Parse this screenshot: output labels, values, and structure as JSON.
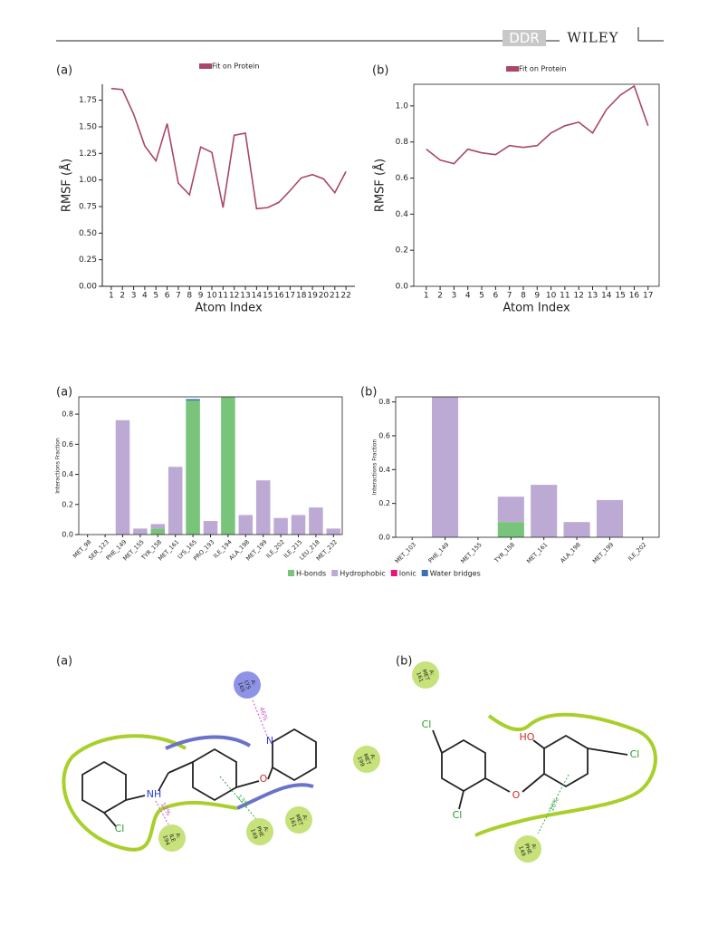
{
  "header": {
    "journal": "DDR",
    "publisher": "WILEY"
  },
  "chart_data": [
    {
      "type": "line",
      "panel": "(a)",
      "xlabel": "Atom Index",
      "ylabel": "RMSF (Å)",
      "x": [
        1,
        2,
        3,
        4,
        5,
        6,
        7,
        8,
        9,
        10,
        11,
        12,
        13,
        14,
        15,
        16,
        17,
        18,
        19,
        20,
        21,
        22
      ],
      "series": [
        {
          "name": "Fit on Protein",
          "color": "#a8466d",
          "values": [
            1.86,
            1.85,
            1.62,
            1.32,
            1.18,
            1.53,
            0.97,
            0.86,
            1.31,
            1.26,
            0.74,
            1.42,
            1.44,
            0.73,
            0.74,
            0.79,
            0.9,
            1.02,
            1.05,
            1.01,
            0.88,
            1.08
          ]
        }
      ],
      "xlim": [
        0.2,
        22.8
      ],
      "ylim": [
        0,
        1.9
      ],
      "xticks": [
        1,
        2,
        3,
        4,
        5,
        6,
        7,
        8,
        9,
        10,
        11,
        12,
        13,
        14,
        15,
        16,
        17,
        18,
        19,
        20,
        21,
        22
      ],
      "yticks": [
        {
          "value": 0,
          "label": "0.00"
        },
        0.25,
        {
          "value": 0.5,
          "label": "0.50"
        },
        0.75,
        {
          "value": 1,
          "label": "1.00"
        },
        1.25,
        {
          "value": 1.5,
          "label": "1.50"
        },
        1.75
      ]
    },
    {
      "type": "line",
      "panel": "(b)",
      "xlabel": "Atom Index",
      "ylabel": "RMSF (Å)",
      "x": [
        1,
        2,
        3,
        4,
        5,
        6,
        7,
        8,
        9,
        10,
        11,
        12,
        13,
        14,
        15,
        16,
        17
      ],
      "series": [
        {
          "name": "Fit on Protein",
          "color": "#a8466d",
          "values": [
            0.76,
            0.7,
            0.68,
            0.76,
            0.74,
            0.73,
            0.78,
            0.77,
            0.78,
            0.85,
            0.89,
            0.91,
            0.85,
            0.98,
            1.06,
            1.11,
            0.89
          ]
        }
      ],
      "xlim": [
        0.1,
        17.8
      ],
      "ylim": [
        0,
        1.12
      ],
      "xticks": [
        1,
        2,
        3,
        4,
        5,
        6,
        7,
        8,
        9,
        10,
        11,
        12,
        13,
        14,
        15,
        16,
        17
      ],
      "yticks": [
        {
          "value": 0,
          "label": "0.0"
        },
        0.2,
        0.4,
        0.6,
        0.8,
        {
          "value": 1,
          "label": "1.0"
        }
      ]
    },
    {
      "type": "stacked_bar",
      "panel": "(a)",
      "ylabel": "Interactions Fraction",
      "categories": [
        "MET_98",
        "SER_123",
        "PHE_149",
        "MET_155",
        "TYR_158",
        "MET_161",
        "LYS_165",
        "PRO_193",
        "ILE_194",
        "ALA_198",
        "MET_199",
        "ILE_202",
        "ILE_215",
        "LEU_218",
        "MET_232"
      ],
      "series": [
        {
          "name": "H-bonds",
          "color": "#77c47a",
          "values": [
            0,
            0,
            0,
            0,
            0.04,
            0,
            0.89,
            0,
            0.92,
            0,
            0,
            0,
            0,
            0,
            0
          ]
        },
        {
          "name": "Hydrophobic",
          "color": "#bcaad4",
          "values": [
            0,
            0,
            0.76,
            0.04,
            0.03,
            0.45,
            0,
            0.09,
            0,
            0.13,
            0.36,
            0.11,
            0.13,
            0.18,
            0.04
          ]
        },
        {
          "name": "Ionic",
          "color": "#e8147c",
          "values": [
            0,
            0,
            0,
            0,
            0,
            0,
            0,
            0,
            0,
            0,
            0,
            0,
            0,
            0,
            0
          ]
        },
        {
          "name": "Water bridges",
          "color": "#3a6fb6",
          "values": [
            0,
            0,
            0,
            0,
            0,
            0,
            0.01,
            0,
            0,
            0,
            0,
            0,
            0,
            0,
            0
          ]
        }
      ],
      "ylim": [
        0,
        0.915
      ],
      "yticks": [
        {
          "value": 0,
          "label": "0.0"
        },
        0.2,
        0.4,
        0.6,
        0.8
      ]
    },
    {
      "type": "stacked_bar",
      "panel": "(b)",
      "ylabel": "Interactions Fraction",
      "categories": [
        "MET_103",
        "PHE_149",
        "MET_155",
        "TYR_158",
        "MET_161",
        "ALA_198",
        "MET_199",
        "ILE_202"
      ],
      "series": [
        {
          "color": "#77c47a",
          "values": [
            0,
            0,
            0,
            0.09,
            0,
            0,
            0,
            0
          ]
        },
        {
          "color": "#bcaad4",
          "values": [
            0,
            0.83,
            0,
            0.15,
            0.31,
            0.09,
            0.22,
            0
          ]
        },
        {
          "color": "#e8147c",
          "values": [
            0,
            0,
            0,
            0,
            0,
            0,
            0,
            0
          ]
        },
        {
          "color": "#3a6fb6",
          "values": [
            0,
            0,
            0,
            0,
            0,
            0,
            0,
            0
          ]
        }
      ],
      "ylim": [
        0,
        0.83
      ],
      "yticks": [
        {
          "value": 0,
          "label": "0.0"
        },
        0.2,
        0.4,
        0.6,
        0.8
      ]
    }
  ],
  "diagrams": [
    {
      "panel": "(a)",
      "residues": [
        [
          "A:",
          "LYS",
          "165"
        ],
        [
          "A:",
          "MET",
          "199"
        ],
        [
          "A:",
          "ILE",
          "194"
        ],
        [
          "A:",
          "PHE",
          "149"
        ],
        [
          "A:",
          "MET",
          "161"
        ]
      ],
      "percentages": [
        "46%",
        "12%",
        "13%"
      ],
      "atoms": [
        "N",
        "O",
        "NH",
        "Cl"
      ]
    },
    {
      "panel": "(b)",
      "residues": [
        [
          "A:",
          "MET",
          "161"
        ],
        [
          "A:",
          "PHE",
          "149"
        ]
      ],
      "percentages": [
        "16%"
      ],
      "atoms": [
        "Cl",
        "HO",
        "O",
        "Cl",
        "Cl"
      ]
    }
  ]
}
